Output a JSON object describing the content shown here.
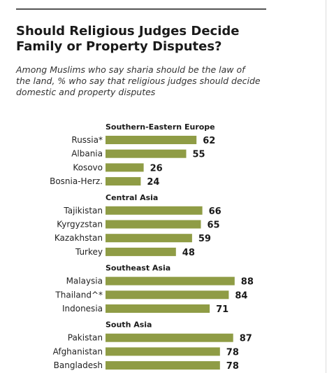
{
  "title": "Should Religious Judges Decide Family or Property Disputes?",
  "subtitle": "Among Muslims who say sharia should be the law of the land, % who say that religious judges should decide domestic and property disputes",
  "colors": {
    "bar": "#8f9c45",
    "rule": "#555555"
  },
  "chart_data": {
    "type": "bar",
    "orientation": "horizontal",
    "title": "Should Religious Judges Decide Family or Property Disputes?",
    "subtitle": "Among Muslims who say sharia should be the law of the land, % who say that religious judges should decide domestic and property disputes",
    "xlim": [
      0,
      100
    ],
    "grid": false,
    "groups": [
      {
        "name": "Southern-Eastern  Europe",
        "categories": [
          "Russia*",
          "Albania",
          "Kosovo",
          "Bosnia-Herz."
        ],
        "values": [
          62,
          55,
          26,
          24
        ]
      },
      {
        "name": "Central Asia",
        "categories": [
          "Tajikistan",
          "Kyrgyzstan",
          "Kazakhstan",
          "Turkey"
        ],
        "values": [
          66,
          65,
          59,
          48
        ]
      },
      {
        "name": "Southeast Asia",
        "categories": [
          "Malaysia",
          "Thailand^*",
          "Indonesia"
        ],
        "values": [
          88,
          84,
          71
        ]
      },
      {
        "name": "South Asia",
        "categories": [
          "Pakistan",
          "Afghanistan",
          "Bangladesh"
        ],
        "values": [
          87,
          78,
          78
        ]
      }
    ]
  }
}
